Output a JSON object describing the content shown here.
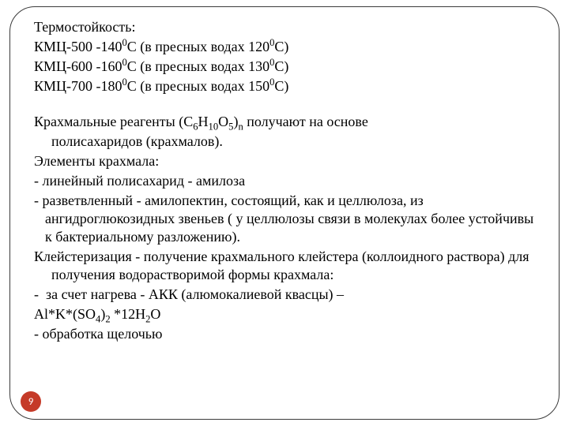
{
  "text": {
    "heading": "Термостойкость:",
    "kmc500_a": "КМЦ-500 -140",
    "kmc500_b": "С (в пресных водах 120",
    "kmc500_c": "С)",
    "kmc600_a": "КМЦ-600 -160",
    "kmc600_b": "С (в пресных водах 130",
    "kmc600_c": "С)",
    "kmc700_a": "КМЦ-700 -180",
    "kmc700_b": "С (в пресных водах 150",
    "kmc700_c": "С)",
    "sup0": "0",
    "starch_a": "Крахмальные реагенты (С",
    "starch_b": "Н",
    "starch_c": "О",
    "starch_d": ")",
    "starch_e": " получают на основе",
    "starch_f": "полисахаридов (крахмалов).",
    "sub6": "6",
    "sub10": "10",
    "sub5": "5",
    "subn": "n",
    "elements": "Элементы крахмала:",
    "li1": "- линейный полисахарид - амилоза",
    "li2": "- разветвленный - амилопектин, состоящий, как и целлюлоза, из ангидроглюкозидных звеньев ( у целлюлозы связи в молекулах более устойчивы к бактериальному разложению).",
    "kleist": "Клейстеризация - получение крахмального клейстера (коллоидного раствора) для получения водорастворимой формы крахмала:",
    "akk_dash": "-",
    "akk_text": "за счет нагрева - АКК (алюмокалиевой квасцы) –",
    "formula_a": "Al*K*(SO",
    "formula_b": ")",
    "formula_c": " *12H",
    "formula_d": "O",
    "sub4": "4",
    "sub2": "2",
    "shchel": "- обработка щелочью"
  },
  "page": {
    "number": "9",
    "badge_bg": "#c53a28",
    "badge_fg": "#ffffff"
  }
}
